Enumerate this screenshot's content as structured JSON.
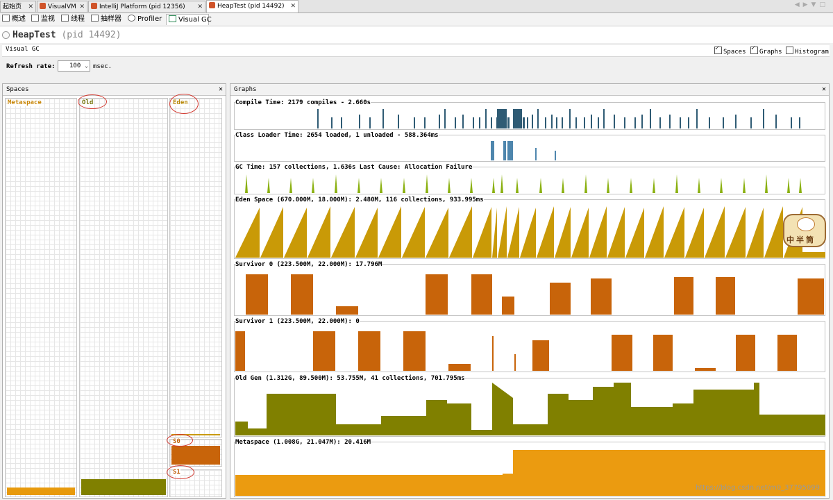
{
  "tabs": [
    {
      "label": "起始页",
      "icon": "start-page-icon",
      "color": "#f0f0f0"
    },
    {
      "label": "VisualVM",
      "icon": "visualvm-icon",
      "color": "#d0542a"
    },
    {
      "label": "IntelliJ Platform (pid 12356)",
      "icon": "intellij-icon",
      "color": "#d0542a"
    },
    {
      "label": "HeapTest (pid 14492)",
      "icon": "java-process-icon",
      "color": "#d0542a"
    }
  ],
  "subtabs": [
    {
      "label": "概述",
      "icon": "overview-icon"
    },
    {
      "label": "监视",
      "icon": "monitor-icon"
    },
    {
      "label": "线程",
      "icon": "threads-icon"
    },
    {
      "label": "抽样器",
      "icon": "sampler-icon"
    },
    {
      "label": "Profiler",
      "icon": "profiler-icon"
    },
    {
      "label": "Visual GC",
      "icon": "visual-gc-icon"
    }
  ],
  "app": {
    "name": "HeapTest",
    "pid": "(pid 14492)"
  },
  "visual_gc": {
    "label": "Visual GC",
    "options": [
      {
        "label": "Spaces",
        "checked": true
      },
      {
        "label": "Graphs",
        "checked": true
      },
      {
        "label": "Histogram",
        "checked": false
      }
    ]
  },
  "refresh": {
    "label": "Refresh rate:",
    "value": "100",
    "unit": "msec."
  },
  "spaces_panel": {
    "title": "Spaces",
    "close": "✕",
    "spaces": [
      {
        "name": "Metaspace",
        "color": "#e89a0c",
        "fill": 0.02
      },
      {
        "name": "Old",
        "color": "#808000",
        "fill": 0.04
      },
      {
        "name": "Eden",
        "color": "#c99a07",
        "fill": 0.004
      },
      {
        "name": "S0",
        "color": "#c8640a",
        "fill": 0.8
      },
      {
        "name": "S1",
        "color": "#c8640a",
        "fill": 0.0
      }
    ]
  },
  "graphs_panel": {
    "title": "Graphs",
    "close": "✕",
    "graphs": [
      {
        "id": "compile",
        "title": "Compile Time: 2179 compiles - 2.660s",
        "color": "#2f5b74",
        "title_color": "#2f5b74"
      },
      {
        "id": "classloader",
        "title": "Class Loader Time: 2654 loaded, 1 unloaded - 588.364ms",
        "color": "#4e86ad",
        "title_color": "#5088b0"
      },
      {
        "id": "gc",
        "title": "GC Time: 157 collections, 1.636s  Last Cause: Allocation Failure",
        "color": "#8ab00f",
        "title_color": "#7a9f0a"
      },
      {
        "id": "eden",
        "title": "Eden Space (670.000M, 18.000M): 2.480M, 116 collections, 933.995ms",
        "color": "#c99a07",
        "title_color": "#b8890a"
      },
      {
        "id": "survivor0",
        "title": "Survivor 0 (223.500M, 22.000M): 17.796M",
        "color": "#c8640a",
        "title_color": "#c0600a"
      },
      {
        "id": "survivor1",
        "title": "Survivor 1 (223.500M, 22.000M): 0",
        "color": "#c8640a",
        "title_color": "#c0600a"
      },
      {
        "id": "oldgen",
        "title": "Old Gen (1.312G, 89.500M): 53.755M, 41 collections, 701.795ms",
        "color": "#808000",
        "title_color": "#6e6e00"
      },
      {
        "id": "metaspace",
        "title": "Metaspace (1.008G, 21.047M): 20.416M",
        "color": "#eb9b10",
        "title_color": "#d88a06"
      }
    ]
  },
  "watermark": "https://blog.csdn.net/m0_37795099",
  "mascot_text": "中半筒"
}
